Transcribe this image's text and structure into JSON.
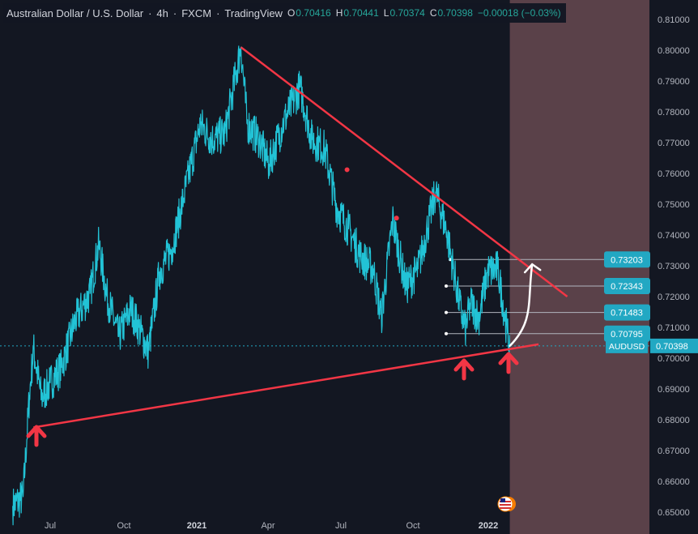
{
  "header": {
    "symbol_name": "Australian Dollar / U.S. Dollar",
    "interval": "4h",
    "exchange": "FXCM",
    "provider": "TradingView",
    "ohlc": [
      {
        "k": "O",
        "v": "0.70416"
      },
      {
        "k": "H",
        "v": "0.70441"
      },
      {
        "k": "L",
        "v": "0.70374"
      },
      {
        "k": "C",
        "v": "0.70398"
      }
    ],
    "change": "−0.00018 (−0.03%)"
  },
  "price_labels": [
    {
      "text": "0.73203",
      "value": 0.73203
    },
    {
      "text": "0.72343",
      "value": 0.72343
    },
    {
      "text": "0.71483",
      "value": 0.71483
    },
    {
      "text": "0.70795",
      "value": 0.70795
    }
  ],
  "last_price": {
    "symbol": "AUDUSD",
    "value": "0.70398"
  },
  "colors": {
    "background": "#131722",
    "price_line": "#22c3d6",
    "trendline": "#f23645",
    "arrow": "#f23645",
    "label_bg": "#22a8c3",
    "future_zone": "#5a4149",
    "axis_text": "#b2b5be",
    "ohlc_value": "#26a69a"
  },
  "icons": [
    "up-arrow-icon",
    "curved-arrow-icon",
    "us-flag-icon"
  ],
  "chart_data": {
    "type": "line",
    "title": "Australian Dollar / U.S. Dollar",
    "x_ticks": [
      "Jul",
      "Oct",
      "2021",
      "Apr",
      "Jul",
      "Oct",
      "2022"
    ],
    "y_ticks": [
      "0.65000",
      "0.66000",
      "0.67000",
      "0.68000",
      "0.69000",
      "0.70000",
      "0.71000",
      "0.72000",
      "0.73000",
      "0.74000",
      "0.75000",
      "0.76000",
      "0.77000",
      "0.78000",
      "0.79000",
      "0.80000",
      "0.81000"
    ],
    "ylim": [
      0.65,
      0.815
    ],
    "grid": false,
    "series": [
      {
        "x": [
          "2020-05-15",
          "2020-05-28",
          "2020-06-05",
          "2020-06-10",
          "2020-06-20",
          "2020-07-01",
          "2020-07-15",
          "2020-08-01",
          "2020-08-20",
          "2020-08-31",
          "2020-09-10",
          "2020-09-25",
          "2020-10-10",
          "2020-10-20",
          "2020-11-01",
          "2020-11-15",
          "2020-12-01",
          "2020-12-15",
          "2021-01-05",
          "2021-01-20",
          "2021-02-05",
          "2021-02-25",
          "2021-03-05",
          "2021-03-20",
          "2021-04-01",
          "2021-04-20",
          "2021-05-10",
          "2021-05-25",
          "2021-06-10",
          "2021-06-25",
          "2021-07-10",
          "2021-07-25",
          "2021-08-10",
          "2021-08-20",
          "2021-09-03",
          "2021-09-20",
          "2021-10-05",
          "2021-10-27",
          "2021-11-10",
          "2021-11-25",
          "2021-12-03",
          "2021-12-10",
          "2021-12-20",
          "2021-12-31",
          "2022-01-13",
          "2022-01-25",
          "2022-01-28"
        ],
        "values": [
          0.652,
          0.655,
          0.688,
          0.703,
          0.687,
          0.692,
          0.697,
          0.712,
          0.721,
          0.737,
          0.72,
          0.707,
          0.716,
          0.71,
          0.702,
          0.728,
          0.736,
          0.752,
          0.776,
          0.771,
          0.773,
          0.801,
          0.776,
          0.771,
          0.763,
          0.777,
          0.788,
          0.771,
          0.768,
          0.749,
          0.742,
          0.733,
          0.729,
          0.713,
          0.745,
          0.723,
          0.729,
          0.754,
          0.741,
          0.719,
          0.709,
          0.718,
          0.713,
          0.728,
          0.729,
          0.708,
          0.7039
        ]
      }
    ],
    "lines": [
      {
        "name": "resistance",
        "from": {
          "x": "2021-02-25",
          "y": 0.801
        },
        "to": {
          "x": "2022-04-10",
          "y": 0.72
        }
      },
      {
        "name": "support",
        "from": {
          "x": "2020-06-10",
          "y": 0.6775
        },
        "to": {
          "x": "2022-03-05",
          "y": 0.7045
        }
      }
    ],
    "markers": [
      {
        "x": "2021-07-08",
        "y": 0.7612
      },
      {
        "x": "2021-09-08",
        "y": 0.7455
      }
    ],
    "projection": {
      "from": {
        "x": "2022-01-28",
        "y": 0.704
      },
      "to": {
        "x": "2022-02-25",
        "y": 0.7305
      }
    }
  }
}
